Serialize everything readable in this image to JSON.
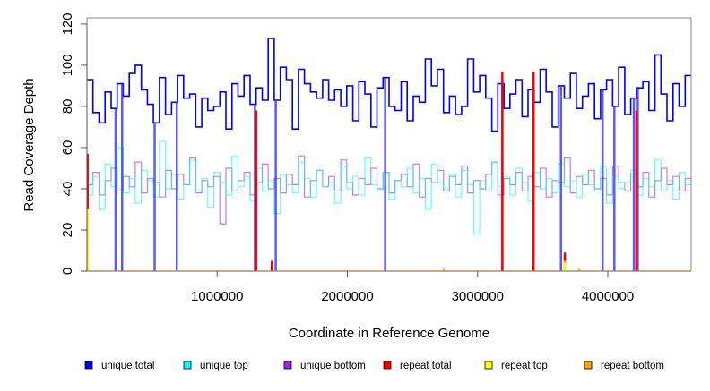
{
  "chart_data": {
    "type": "line",
    "title": "",
    "xlabel": "Coordinate in Reference Genome",
    "ylabel": "Read Coverage Depth",
    "xlim": [
      0,
      4640000
    ],
    "ylim": [
      0,
      123
    ],
    "xticks": [
      1000000,
      2000000,
      3000000,
      4000000
    ],
    "xtick_labels": [
      "1000000",
      "2000000",
      "3000000",
      "4000000"
    ],
    "yticks": [
      0,
      20,
      40,
      60,
      80,
      100,
      120
    ],
    "ytick_labels": [
      "0",
      "20",
      "40",
      "60",
      "80",
      "100",
      "120"
    ],
    "legend_position": "bottom",
    "x_start": 0,
    "x_step": 46400,
    "series": [
      {
        "name": "unique total",
        "color": "#0000ff",
        "values": [
          93,
          77,
          72,
          87,
          79,
          91,
          85,
          96,
          100,
          88,
          81,
          72,
          94,
          76,
          82,
          95,
          84,
          86,
          70,
          84,
          78,
          80,
          87,
          69,
          91,
          85,
          95,
          81,
          89,
          83,
          113,
          83,
          99,
          93,
          69,
          98,
          91,
          87,
          84,
          93,
          83,
          88,
          80,
          90,
          73,
          92,
          86,
          70,
          89,
          94,
          80,
          78,
          92,
          73,
          85,
          82,
          103,
          90,
          98,
          77,
          85,
          76,
          80,
          103,
          87,
          95,
          84,
          68,
          91,
          79,
          86,
          93,
          75,
          88,
          82,
          98,
          87,
          70,
          90,
          84,
          96,
          79,
          85,
          91,
          74,
          88,
          93,
          80,
          99,
          76,
          84,
          89,
          92,
          78,
          105,
          86,
          73,
          91,
          80,
          95
        ]
      },
      {
        "name": "unique top",
        "color": "#00ffff",
        "values": [
          37,
          46,
          30,
          52,
          41,
          60,
          38,
          45,
          33,
          49,
          44,
          36,
          63,
          40,
          47,
          35,
          42,
          54,
          39,
          45,
          31,
          48,
          43,
          37,
          56,
          41,
          46,
          34,
          50,
          39,
          44,
          28,
          47,
          42,
          38,
          53,
          45,
          36,
          49,
          41,
          43,
          33,
          51,
          40,
          46,
          37,
          55,
          42,
          39,
          48,
          35,
          44,
          41,
          50,
          38,
          45,
          30,
          52,
          43,
          40,
          47,
          36,
          49,
          42,
          18,
          44,
          39,
          53,
          41,
          46,
          37,
          50,
          43,
          34,
          48,
          40,
          45,
          38,
          52,
          41,
          44,
          36,
          47,
          42,
          39,
          51,
          33,
          46,
          40,
          43,
          49,
          37,
          45,
          41,
          54,
          39,
          44,
          35,
          48,
          42
        ]
      },
      {
        "name": "unique bottom",
        "color": "#a020f0",
        "values": [
          42,
          48,
          37,
          44,
          50,
          39,
          46,
          41,
          53,
          38,
          45,
          43,
          36,
          49,
          40,
          47,
          42,
          55,
          38,
          44,
          41,
          46,
          23,
          50,
          39,
          44,
          48,
          37,
          43,
          52,
          40,
          45,
          38,
          47,
          42,
          56,
          36,
          44,
          49,
          41,
          46,
          39,
          54,
          43,
          37,
          45,
          42,
          50,
          40,
          48,
          38,
          44,
          47,
          41,
          52,
          36,
          45,
          43,
          49,
          39,
          46,
          42,
          51,
          38,
          44,
          40,
          47,
          53,
          37,
          45,
          42,
          48,
          39,
          46,
          41,
          50,
          36,
          44,
          43,
          55,
          38,
          46,
          42,
          49,
          40,
          45,
          37,
          51,
          43,
          39,
          47,
          41,
          48,
          36,
          44,
          50,
          42,
          46,
          39,
          45
        ]
      },
      {
        "name": "repeat total",
        "color": "#ff0000",
        "points": [
          [
            5000,
            57
          ],
          [
            1300000,
            78
          ],
          [
            1420000,
            5
          ],
          [
            3190000,
            97
          ],
          [
            3430000,
            97
          ],
          [
            3670000,
            9
          ],
          [
            4220000,
            78
          ]
        ]
      },
      {
        "name": "repeat top",
        "color": "#ffff00",
        "points": [
          [
            5000,
            30
          ],
          [
            3670000,
            4
          ]
        ]
      },
      {
        "name": "repeat bottom",
        "color": "#ffa500",
        "points": [
          [
            5000,
            13
          ],
          [
            2740000,
            1
          ],
          [
            3670000,
            5
          ],
          [
            3780000,
            1
          ]
        ]
      }
    ],
    "zero_coverage_x": [
      220000,
      270000,
      520000,
      690000,
      1290000,
      1450000,
      2290000,
      3190000,
      3430000,
      3640000,
      3960000,
      4050000,
      4200000,
      4230000
    ]
  }
}
